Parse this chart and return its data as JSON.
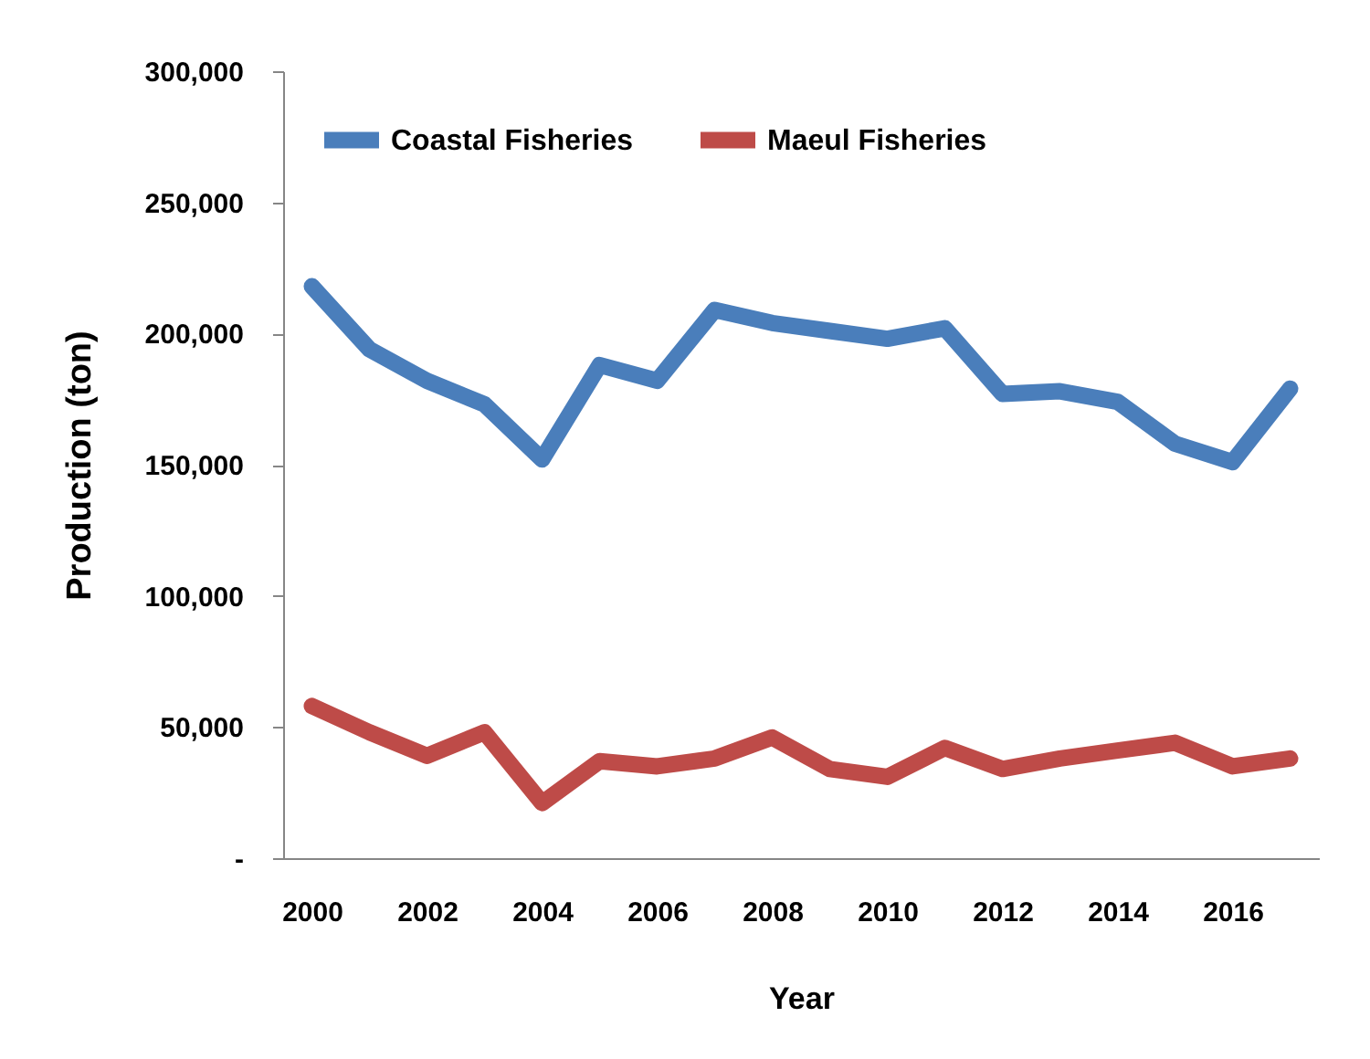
{
  "chart_data": {
    "type": "line",
    "xlabel": "Year",
    "ylabel": "Production (ton)",
    "categories": [
      "2000",
      null,
      "2002",
      null,
      "2004",
      null,
      "2006",
      null,
      "2008",
      null,
      "2010",
      null,
      "2012",
      null,
      "2014",
      null,
      "2016",
      null
    ],
    "series": [
      {
        "name": "Coastal Fisheries",
        "color": "#4a7ebb",
        "values": [
          218000,
          194000,
          182000,
          173000,
          152000,
          188000,
          182000,
          209000,
          204000,
          201000,
          198000,
          202000,
          177000,
          178000,
          174000,
          158000,
          151000,
          179000
        ]
      },
      {
        "name": "Maeul Fisheries",
        "color": "#be4b48",
        "values": [
          58000,
          48000,
          39000,
          48000,
          21000,
          37000,
          35000,
          38000,
          46000,
          34000,
          31000,
          42000,
          34000,
          38000,
          41000,
          44000,
          35000,
          38000
        ]
      }
    ],
    "ylim": [
      0,
      300000
    ],
    "yticks": [
      {
        "value": 0,
        "label": "-"
      },
      {
        "value": 50000,
        "label": "50,000"
      },
      {
        "value": 100000,
        "label": "100,000"
      },
      {
        "value": 150000,
        "label": "150,000"
      },
      {
        "value": 200000,
        "label": "200,000"
      },
      {
        "value": 250000,
        "label": "250,000"
      },
      {
        "value": 300000,
        "label": "300,000"
      }
    ],
    "legend": "top left",
    "grid": false,
    "line_style": "solid"
  }
}
